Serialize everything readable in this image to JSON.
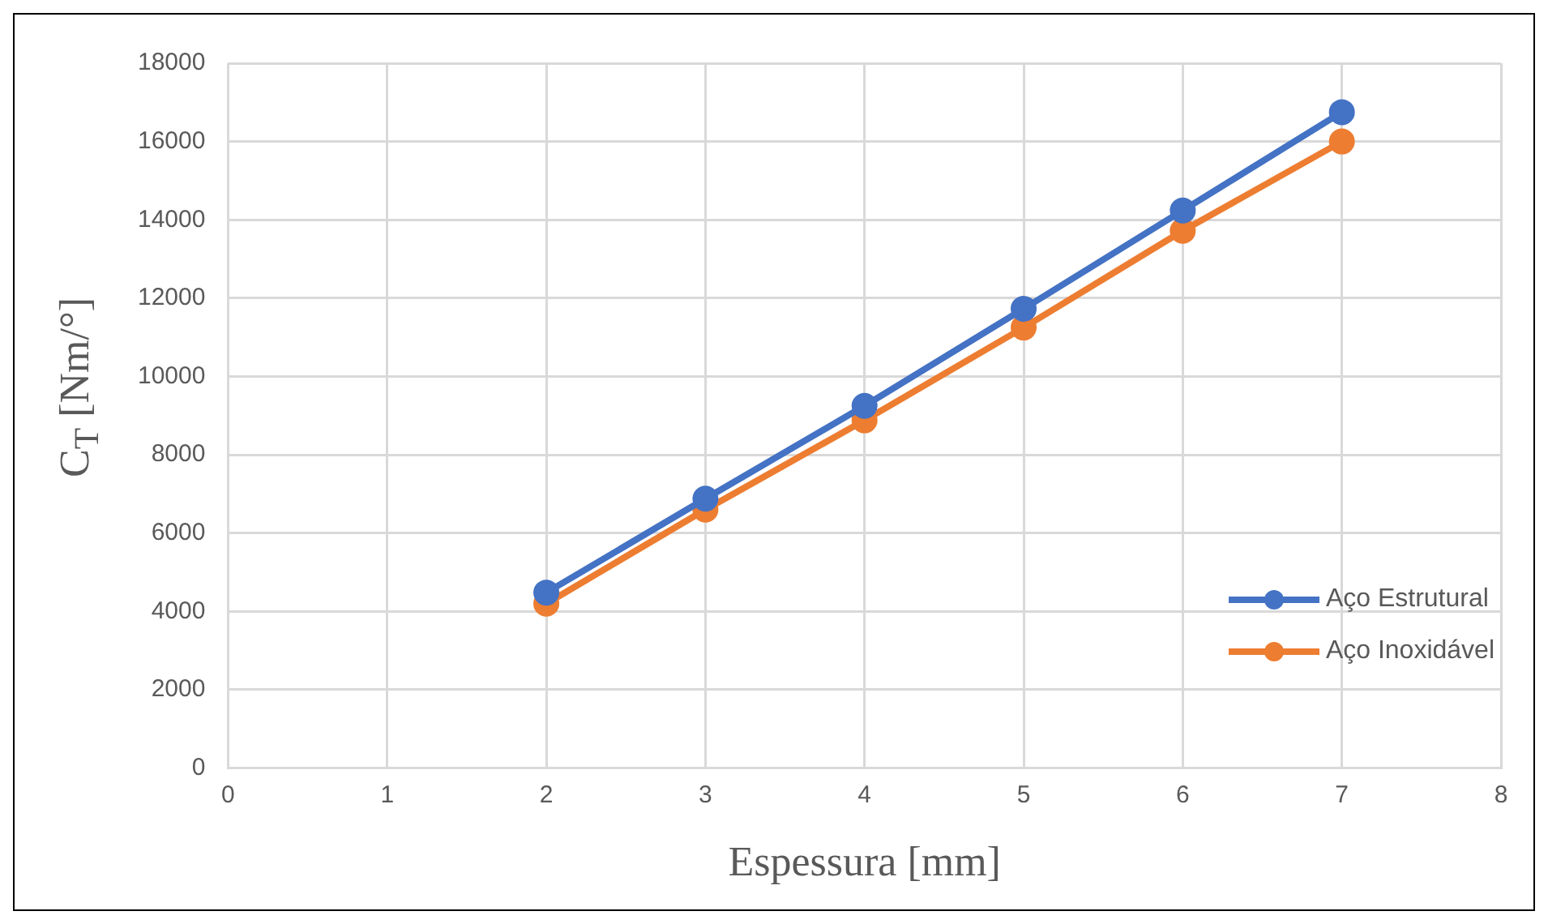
{
  "chart_data": {
    "type": "line",
    "xlabel": "Espessura [mm]",
    "ylabel": "C$_{T}$ [Nm/°]",
    "x": [
      2,
      3,
      4,
      5,
      6,
      7
    ],
    "series": [
      {
        "name": "Aço Estrutural",
        "color": "#4472c4",
        "values": [
          4480,
          6880,
          9250,
          11730,
          14240,
          16750
        ]
      },
      {
        "name": "Aço Inoxidável",
        "color": "#ed7d31",
        "values": [
          4200,
          6600,
          8880,
          11250,
          13720,
          16000
        ]
      }
    ],
    "xlim": [
      0,
      8
    ],
    "xticks": [
      0,
      1,
      2,
      3,
      4,
      5,
      6,
      7,
      8
    ],
    "ylim": [
      0,
      18000
    ],
    "yticks": [
      0,
      2000,
      4000,
      6000,
      8000,
      10000,
      12000,
      14000,
      16000,
      18000
    ],
    "grid": true,
    "legend": "bottom right",
    "marker": "circle",
    "line_style": "solid"
  }
}
